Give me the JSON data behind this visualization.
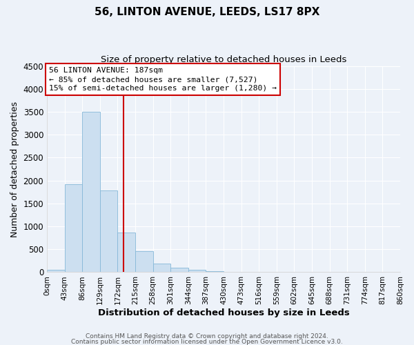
{
  "title": "56, LINTON AVENUE, LEEDS, LS17 8PX",
  "subtitle": "Size of property relative to detached houses in Leeds",
  "xlabel": "Distribution of detached houses by size in Leeds",
  "ylabel": "Number of detached properties",
  "footer_line1": "Contains HM Land Registry data © Crown copyright and database right 2024.",
  "footer_line2": "Contains public sector information licensed under the Open Government Licence v3.0.",
  "bin_edges": [
    0,
    43,
    86,
    129,
    172,
    215,
    258,
    301,
    344,
    387,
    430,
    473,
    516,
    559,
    602,
    645,
    688,
    731,
    774,
    817,
    860
  ],
  "bin_counts": [
    50,
    1920,
    3500,
    1780,
    860,
    460,
    185,
    95,
    45,
    25,
    10,
    5,
    2,
    1,
    0,
    0,
    0,
    0,
    0,
    0
  ],
  "bar_color": "#ccdff0",
  "bar_edge_color": "#85b8d8",
  "vline_x": 187,
  "vline_color": "#cc0000",
  "ann_line1": "56 LINTON AVENUE: 187sqm",
  "ann_line2": "← 85% of detached houses are smaller (7,527)",
  "ann_line3": "15% of semi-detached houses are larger (1,280) →",
  "box_edge_color": "#cc0000",
  "ylim": [
    0,
    4500
  ],
  "yticks": [
    0,
    500,
    1000,
    1500,
    2000,
    2500,
    3000,
    3500,
    4000,
    4500
  ],
  "background_color": "#edf2f9",
  "grid_color": "#ffffff",
  "tick_labels": [
    "0sqm",
    "43sqm",
    "86sqm",
    "129sqm",
    "172sqm",
    "215sqm",
    "258sqm",
    "301sqm",
    "344sqm",
    "387sqm",
    "430sqm",
    "473sqm",
    "516sqm",
    "559sqm",
    "602sqm",
    "645sqm",
    "688sqm",
    "731sqm",
    "774sqm",
    "817sqm",
    "860sqm"
  ]
}
